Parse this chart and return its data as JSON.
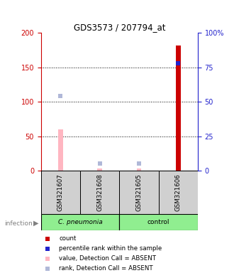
{
  "title": "GDS3573 / 207794_at",
  "samples": [
    "GSM321607",
    "GSM321608",
    "GSM321605",
    "GSM321606"
  ],
  "values_absent": [
    60,
    3,
    3,
    null
  ],
  "values_present": [
    null,
    null,
    null,
    182
  ],
  "rank_absent_y": [
    108,
    10,
    10,
    null
  ],
  "rank_present_y": [
    null,
    null,
    null,
    156
  ],
  "rank_absent_color": "#b0b8d8",
  "rank_present_color": "#2222cc",
  "bar_absent_color": "#ffb6c1",
  "bar_present_color": "#cc0000",
  "ylim_left": [
    0,
    200
  ],
  "ylim_right": [
    0,
    100
  ],
  "yticks_left": [
    0,
    50,
    100,
    150,
    200
  ],
  "yticks_right": [
    0,
    25,
    50,
    75,
    100
  ],
  "ytick_labels_right": [
    "0",
    "25",
    "50",
    "75",
    "100%"
  ],
  "bar_width": 0.12,
  "rank_marker_size": 18,
  "axis_left_color": "#cc0000",
  "axis_right_color": "#2222cc",
  "legend_items": [
    {
      "color": "#cc0000",
      "label": "count"
    },
    {
      "color": "#2222cc",
      "label": "percentile rank within the sample"
    },
    {
      "color": "#ffb6c1",
      "label": "value, Detection Call = ABSENT"
    },
    {
      "color": "#b0b8d8",
      "label": "rank, Detection Call = ABSENT"
    }
  ]
}
